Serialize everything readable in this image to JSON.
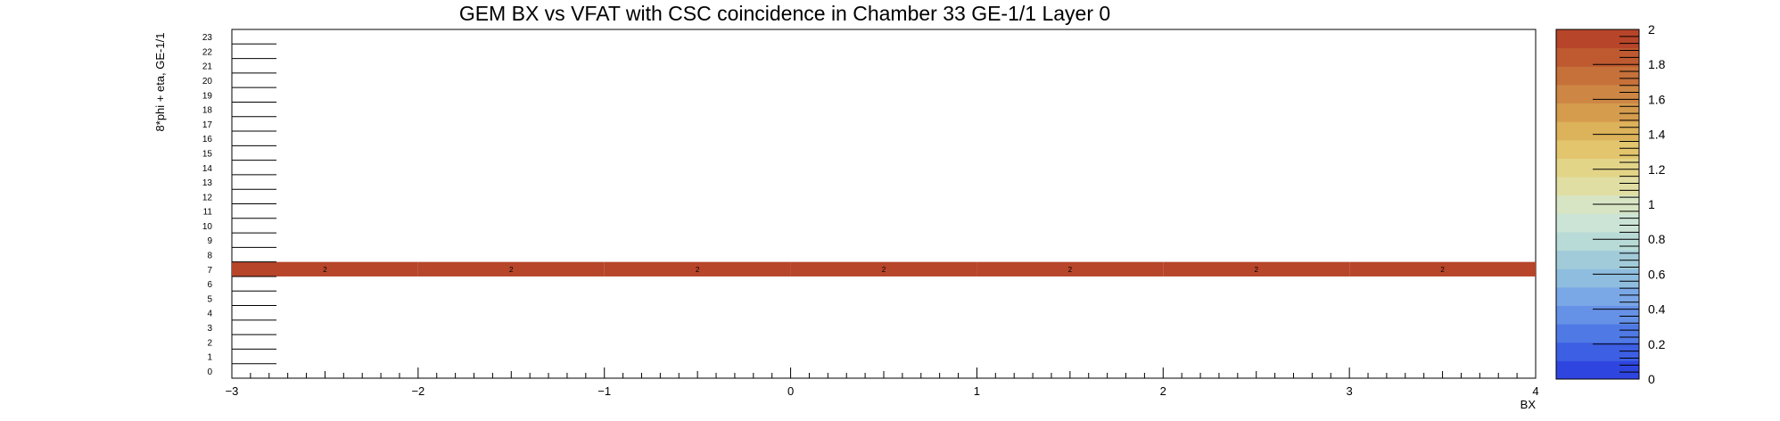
{
  "chart_data": {
    "type": "heatmap",
    "title": "GEM BX vs VFAT with CSC coincidence in Chamber 33 GE-1/1 Layer 0",
    "xlabel": "BX",
    "ylabel": "8*phi + eta, GE-1/1",
    "xlim": [
      -3,
      4
    ],
    "ylim": [
      0,
      24
    ],
    "x_ticks": [
      "−3",
      "−2",
      "−1",
      "0",
      "1",
      "2",
      "3",
      "4"
    ],
    "y_ticks": [
      "0",
      "1",
      "2",
      "3",
      "4",
      "5",
      "6",
      "7",
      "8",
      "9",
      "10",
      "11",
      "12",
      "13",
      "14",
      "15",
      "16",
      "17",
      "18",
      "19",
      "20",
      "21",
      "22",
      "23"
    ],
    "zlim": [
      0,
      2
    ],
    "z_ticks": [
      "0",
      "0.2",
      "0.4",
      "0.6",
      "0.8",
      "1",
      "1.2",
      "1.4",
      "1.6",
      "1.8",
      "2"
    ],
    "cells": [
      {
        "x": -2.5,
        "y": 7,
        "value": 2,
        "label": "2"
      },
      {
        "x": -1.5,
        "y": 7,
        "value": 2,
        "label": "2"
      },
      {
        "x": -0.5,
        "y": 7,
        "value": 2,
        "label": "2"
      },
      {
        "x": 0.5,
        "y": 7,
        "value": 2,
        "label": "2"
      },
      {
        "x": 1.5,
        "y": 7,
        "value": 2,
        "label": "2"
      },
      {
        "x": 2.5,
        "y": 7,
        "value": 2,
        "label": "2"
      },
      {
        "x": 3.5,
        "y": 7,
        "value": 2,
        "label": "2"
      }
    ],
    "palette": [
      "#2f45e0",
      "#3d5fe3",
      "#4f79e4",
      "#6591e6",
      "#7aa7e6",
      "#8ebddf",
      "#a2cbd9",
      "#b8dbd7",
      "#cbe4d6",
      "#d8e5c4",
      "#e0dea2",
      "#e3d587",
      "#e2c56d",
      "#dcb25a",
      "#d59c4e",
      "#cd8644",
      "#c6703a",
      "#bf5a30",
      "#b7452a"
    ]
  }
}
